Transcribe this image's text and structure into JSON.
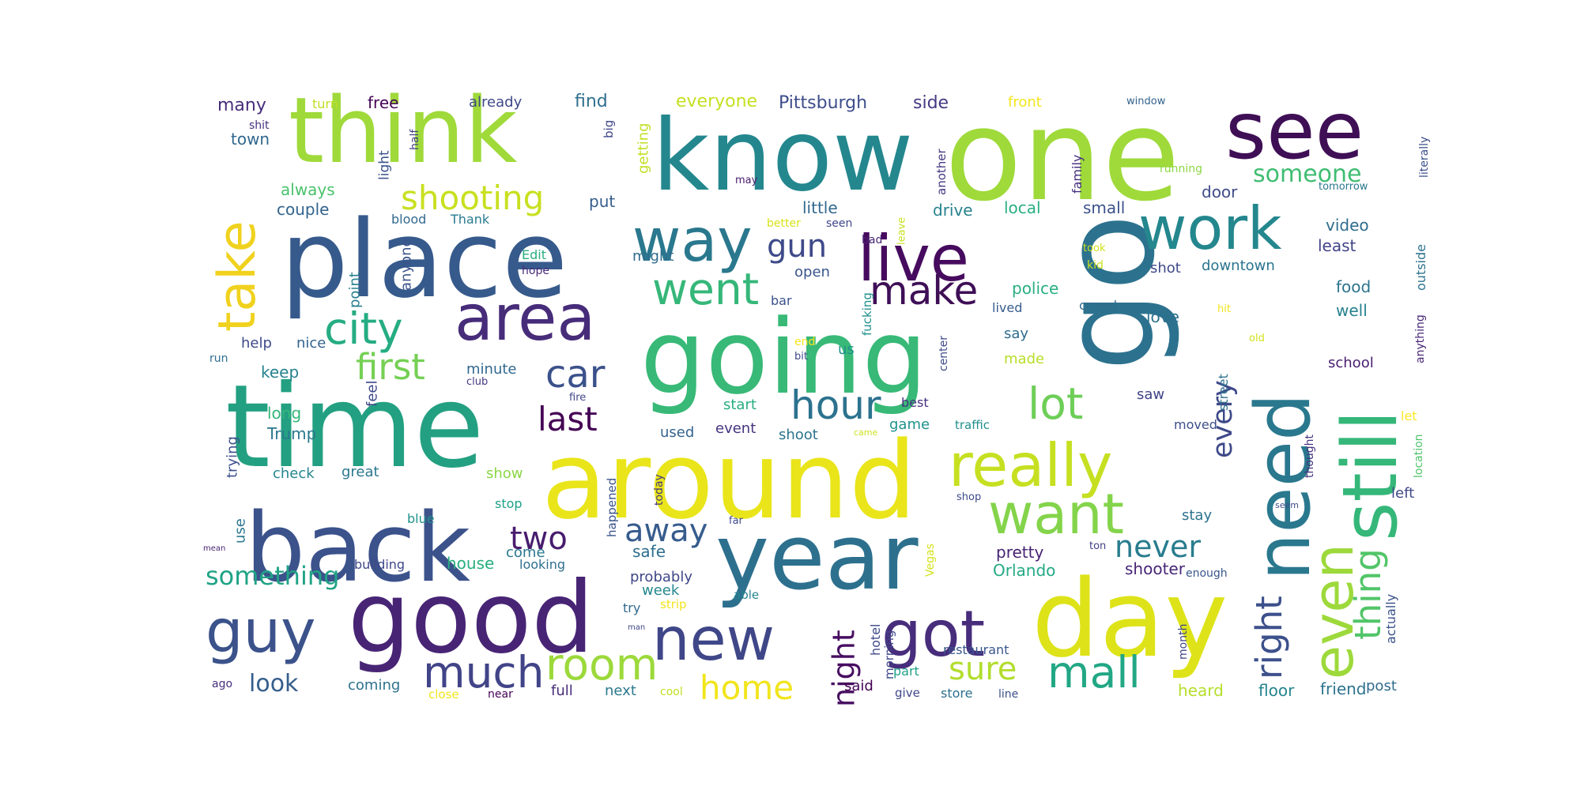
{
  "words": [
    {
      "text": "one",
      "color": "#9fda3a"
    },
    {
      "text": "know",
      "color": "#24878e"
    },
    {
      "text": "think",
      "color": "#9fda3a"
    },
    {
      "text": "see",
      "color": "#3f0f56"
    },
    {
      "text": "place",
      "color": "#375a8c"
    },
    {
      "text": "go",
      "color": "#2c728e"
    },
    {
      "text": "going",
      "color": "#38b977"
    },
    {
      "text": "time",
      "color": "#23a082"
    },
    {
      "text": "around",
      "color": "#e9e51a"
    },
    {
      "text": "back",
      "color": "#3b528b"
    },
    {
      "text": "year",
      "color": "#2d708e"
    },
    {
      "text": "good",
      "color": "#482475"
    },
    {
      "text": "day",
      "color": "#dde318"
    },
    {
      "text": "still",
      "color": "#35b779"
    },
    {
      "text": "need",
      "color": "#2a788e"
    },
    {
      "text": "take",
      "color": "#f0d21e"
    },
    {
      "text": "way",
      "color": "#2a788e"
    },
    {
      "text": "live",
      "color": "#460b5e"
    },
    {
      "text": "work",
      "color": "#24878e"
    },
    {
      "text": "area",
      "color": "#472c7a"
    },
    {
      "text": "really",
      "color": "#c6e021"
    },
    {
      "text": "want",
      "color": "#84d44b"
    },
    {
      "text": "even",
      "color": "#9dd93b"
    },
    {
      "text": "right",
      "color": "#3c508b"
    },
    {
      "text": "thing",
      "color": "#52c569"
    },
    {
      "text": "guy",
      "color": "#3b528b"
    },
    {
      "text": "new",
      "color": "#3f4788"
    },
    {
      "text": "got",
      "color": "#472d7b"
    },
    {
      "text": "much",
      "color": "#414487"
    },
    {
      "text": "room",
      "color": "#9cd93b"
    },
    {
      "text": "mall",
      "color": "#22a785"
    },
    {
      "text": "city",
      "color": "#25ac82"
    },
    {
      "text": "shooting",
      "color": "#c8e020"
    },
    {
      "text": "first",
      "color": "#75d054"
    },
    {
      "text": "car",
      "color": "#3b518b"
    },
    {
      "text": "last",
      "color": "#440154"
    },
    {
      "text": "went",
      "color": "#35b779"
    },
    {
      "text": "make",
      "color": "#3f0f56"
    },
    {
      "text": "gun",
      "color": "#3e4a89"
    },
    {
      "text": "hour",
      "color": "#2c728e"
    },
    {
      "text": "lot",
      "color": "#6ece58"
    },
    {
      "text": "every",
      "color": "#3e4989"
    },
    {
      "text": "away",
      "color": "#365c8d"
    },
    {
      "text": "two",
      "color": "#481c6e"
    },
    {
      "text": "never",
      "color": "#287c8e"
    },
    {
      "text": "night",
      "color": "#470e61"
    },
    {
      "text": "home",
      "color": "#f1e51d"
    },
    {
      "text": "sure",
      "color": "#b2dd2d"
    },
    {
      "text": "something",
      "color": "#20a386"
    },
    {
      "text": "look",
      "color": "#355e8d"
    },
    {
      "text": "someone",
      "color": "#40bd72"
    },
    {
      "text": "Pittsburgh",
      "color": "#3d4e8a"
    },
    {
      "text": "side",
      "color": "#453882"
    },
    {
      "text": "everyone",
      "color": "#c5e021"
    },
    {
      "text": "find",
      "color": "#2e6f8e"
    },
    {
      "text": "already",
      "color": "#3f4889"
    },
    {
      "text": "free",
      "color": "#440154"
    },
    {
      "text": "many",
      "color": "#472d7b"
    },
    {
      "text": "turn",
      "color": "#c0df25"
    },
    {
      "text": "front",
      "color": "#f4e61e"
    },
    {
      "text": "window",
      "color": "#33638d"
    },
    {
      "text": "town",
      "color": "#31688e"
    },
    {
      "text": "shit",
      "color": "#46327e"
    },
    {
      "text": "always",
      "color": "#4ac16d"
    },
    {
      "text": "couple",
      "color": "#32648e"
    },
    {
      "text": "light",
      "color": "#3b528b"
    },
    {
      "text": "half",
      "color": "#423f85"
    },
    {
      "text": "big",
      "color": "#404688"
    },
    {
      "text": "getting",
      "color": "#c2df23"
    },
    {
      "text": "blood",
      "color": "#31688e"
    },
    {
      "text": "Thank",
      "color": "#287c8e"
    },
    {
      "text": "put",
      "color": "#365d8d"
    },
    {
      "text": "may",
      "color": "#481b6d"
    },
    {
      "text": "little",
      "color": "#31688e"
    },
    {
      "text": "drive",
      "color": "#26828e"
    },
    {
      "text": "local",
      "color": "#29af7f"
    },
    {
      "text": "small",
      "color": "#3b528b"
    },
    {
      "text": "better",
      "color": "#d8e219"
    },
    {
      "text": "seen",
      "color": "#3f4788"
    },
    {
      "text": "another",
      "color": "#443983"
    },
    {
      "text": "leave",
      "color": "#c8e020"
    },
    {
      "text": "family",
      "color": "#46307e"
    },
    {
      "text": "running",
      "color": "#8fd744"
    },
    {
      "text": "door",
      "color": "#3e4c8a"
    },
    {
      "text": "tomorrow",
      "color": "#2a788e"
    },
    {
      "text": "literally",
      "color": "#3c4f8a"
    },
    {
      "text": "video",
      "color": "#2f6b8e"
    },
    {
      "text": "least",
      "color": "#414487"
    },
    {
      "text": "point",
      "color": "#27808e"
    },
    {
      "text": "anyone",
      "color": "#3a548c"
    },
    {
      "text": "Edit",
      "color": "#28ae80"
    },
    {
      "text": "hope",
      "color": "#472a7a"
    },
    {
      "text": "might",
      "color": "#2f6c8e"
    },
    {
      "text": "bad",
      "color": "#482475"
    },
    {
      "text": "took",
      "color": "#d0e11c"
    },
    {
      "text": "kid",
      "color": "#cae11f"
    },
    {
      "text": "shot",
      "color": "#3e4a89"
    },
    {
      "text": "downtown",
      "color": "#2b758e"
    },
    {
      "text": "food",
      "color": "#2b748e"
    },
    {
      "text": "open",
      "color": "#39558c"
    },
    {
      "text": "fucking",
      "color": "#21918c"
    },
    {
      "text": "police",
      "color": "#29af7f"
    },
    {
      "text": "lived",
      "color": "#365d8d"
    },
    {
      "text": "crowd",
      "color": "#2f6c8e"
    },
    {
      "text": "love",
      "color": "#2c728e"
    },
    {
      "text": "hit",
      "color": "#f0e51c"
    },
    {
      "text": "old",
      "color": "#d2e21b"
    },
    {
      "text": "well",
      "color": "#26828e"
    },
    {
      "text": "anything",
      "color": "#482576"
    },
    {
      "text": "outside",
      "color": "#2c728e"
    },
    {
      "text": "bar",
      "color": "#3b518b"
    },
    {
      "text": "help",
      "color": "#3e4a89"
    },
    {
      "text": "nice",
      "color": "#33638d"
    },
    {
      "text": "end",
      "color": "#f5e61f"
    },
    {
      "text": "bit",
      "color": "#3f4889"
    },
    {
      "text": "us",
      "color": "#21908d"
    },
    {
      "text": "center",
      "color": "#3e4a89"
    },
    {
      "text": "say",
      "color": "#2f6b8e"
    },
    {
      "text": "made",
      "color": "#b8de29"
    },
    {
      "text": "school",
      "color": "#481d6f"
    },
    {
      "text": "run",
      "color": "#2f6c8e"
    },
    {
      "text": "keep",
      "color": "#26828e"
    },
    {
      "text": "minute",
      "color": "#31678e"
    },
    {
      "text": "club",
      "color": "#453781"
    },
    {
      "text": "fire",
      "color": "#404588"
    },
    {
      "text": "feel",
      "color": "#3e4989"
    },
    {
      "text": "best",
      "color": "#46307e"
    },
    {
      "text": "start",
      "color": "#27ad81"
    },
    {
      "text": "event",
      "color": "#46337f"
    },
    {
      "text": "saw",
      "color": "#414487"
    },
    {
      "text": "street",
      "color": "#2d718e"
    },
    {
      "text": "moved",
      "color": "#3c4f8a"
    },
    {
      "text": "long",
      "color": "#35b779"
    },
    {
      "text": "Trump",
      "color": "#2a788e"
    },
    {
      "text": "used",
      "color": "#33638d"
    },
    {
      "text": "shoot",
      "color": "#2b748e"
    },
    {
      "text": "game",
      "color": "#20928c"
    },
    {
      "text": "traffic",
      "color": "#218f8d"
    },
    {
      "text": "came",
      "color": "#cde11d"
    },
    {
      "text": "let",
      "color": "#fde725"
    },
    {
      "text": "location",
      "color": "#4fc46a"
    },
    {
      "text": "thought",
      "color": "#46327e"
    },
    {
      "text": "trying",
      "color": "#3b518b"
    },
    {
      "text": "check",
      "color": "#24878e"
    },
    {
      "text": "great",
      "color": "#2a788e"
    },
    {
      "text": "show",
      "color": "#8bd646"
    },
    {
      "text": "today",
      "color": "#453882"
    },
    {
      "text": "happened",
      "color": "#3a538b"
    },
    {
      "text": "stop",
      "color": "#1fa188"
    },
    {
      "text": "shop",
      "color": "#3e4989"
    },
    {
      "text": "seem",
      "color": "#3d4d8a"
    },
    {
      "text": "left",
      "color": "#3f4889"
    },
    {
      "text": "use",
      "color": "#2a788e"
    },
    {
      "text": "blue",
      "color": "#21918c"
    },
    {
      "text": "far",
      "color": "#3e4a89"
    },
    {
      "text": "stay",
      "color": "#2c738e"
    },
    {
      "text": "mean",
      "color": "#482374"
    },
    {
      "text": "building",
      "color": "#3f4788"
    },
    {
      "text": "house",
      "color": "#29af7f"
    },
    {
      "text": "come",
      "color": "#2a788e"
    },
    {
      "text": "safe",
      "color": "#2e6e8e"
    },
    {
      "text": "ton",
      "color": "#423f85"
    },
    {
      "text": "pretty",
      "color": "#482475"
    },
    {
      "text": "Orlando",
      "color": "#24aa83"
    },
    {
      "text": "Vegas",
      "color": "#d5e21a"
    },
    {
      "text": "actually",
      "color": "#3b528b"
    },
    {
      "text": "looking",
      "color": "#2e6e8e"
    },
    {
      "text": "probably",
      "color": "#3f4788"
    },
    {
      "text": "shooter",
      "color": "#482677"
    },
    {
      "text": "enough",
      "color": "#39568c"
    },
    {
      "text": "week",
      "color": "#23888e"
    },
    {
      "text": "try",
      "color": "#30698e"
    },
    {
      "text": "strip",
      "color": "#f1e51d"
    },
    {
      "text": "able",
      "color": "#25848e"
    },
    {
      "text": "hotel",
      "color": "#3f4889"
    },
    {
      "text": "morning",
      "color": "#3f4788"
    },
    {
      "text": "restaurant",
      "color": "#39568c"
    },
    {
      "text": "month",
      "color": "#404588"
    },
    {
      "text": "post",
      "color": "#2f6c8e"
    },
    {
      "text": "part",
      "color": "#1fa188"
    },
    {
      "text": "man",
      "color": "#3f4788"
    },
    {
      "text": "ago",
      "color": "#472d7b"
    },
    {
      "text": "coming",
      "color": "#2d718e"
    },
    {
      "text": "close",
      "color": "#f1e51d"
    },
    {
      "text": "near",
      "color": "#440154"
    },
    {
      "text": "full",
      "color": "#472c7a"
    },
    {
      "text": "next",
      "color": "#2a788e"
    },
    {
      "text": "cool",
      "color": "#c2df23"
    },
    {
      "text": "said",
      "color": "#440154"
    },
    {
      "text": "give",
      "color": "#3f4889"
    },
    {
      "text": "store",
      "color": "#2d708e"
    },
    {
      "text": "line",
      "color": "#3c508b"
    },
    {
      "text": "heard",
      "color": "#b5de2b"
    },
    {
      "text": "floor",
      "color": "#25858e"
    },
    {
      "text": "friend",
      "color": "#2c738e"
    }
  ]
}
